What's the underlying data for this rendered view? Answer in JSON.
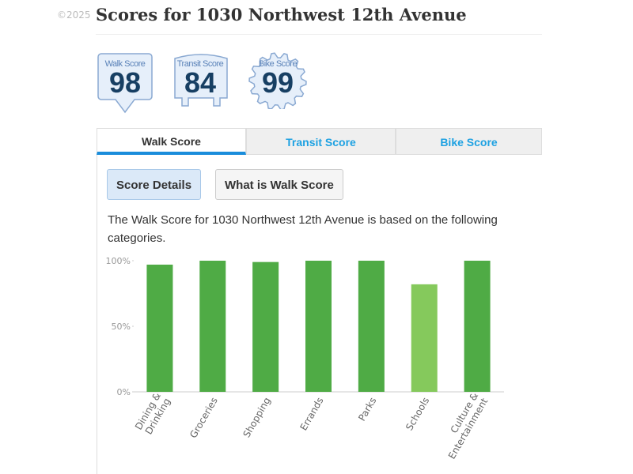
{
  "copyright": "©2025",
  "title": "Scores for 1030 Northwest 12th Avenue",
  "badges": [
    {
      "label": "Walk Score",
      "value": "98",
      "shape": "pin"
    },
    {
      "label": "Transit Score",
      "value": "84",
      "shape": "bus"
    },
    {
      "label": "Bike Score",
      "value": "99",
      "shape": "gear"
    }
  ],
  "tabs": [
    {
      "label": "Walk Score",
      "active": true
    },
    {
      "label": "Transit Score",
      "active": false
    },
    {
      "label": "Bike Score",
      "active": false
    }
  ],
  "buttons": {
    "score_details": "Score Details",
    "what_is": "What is Walk Score"
  },
  "description": "The Walk Score for 1030 Northwest 12th Avenue is based on the following categories.",
  "chart_data": {
    "type": "bar",
    "categories": [
      [
        "Dining &",
        "Drinking"
      ],
      [
        "Groceries"
      ],
      [
        "Shopping"
      ],
      [
        "Errands"
      ],
      [
        "Parks"
      ],
      [
        "Schools"
      ],
      [
        "Culture &",
        "Entertainment"
      ]
    ],
    "values": [
      97,
      100,
      99,
      100,
      100,
      82,
      100
    ],
    "colors": [
      "#4fab45",
      "#4fab45",
      "#4fab45",
      "#4fab45",
      "#4fab45",
      "#85c95c",
      "#4fab45"
    ],
    "yticks": [
      "0%",
      "50%",
      "100%"
    ],
    "ylim": [
      0,
      100
    ],
    "grid": false
  }
}
